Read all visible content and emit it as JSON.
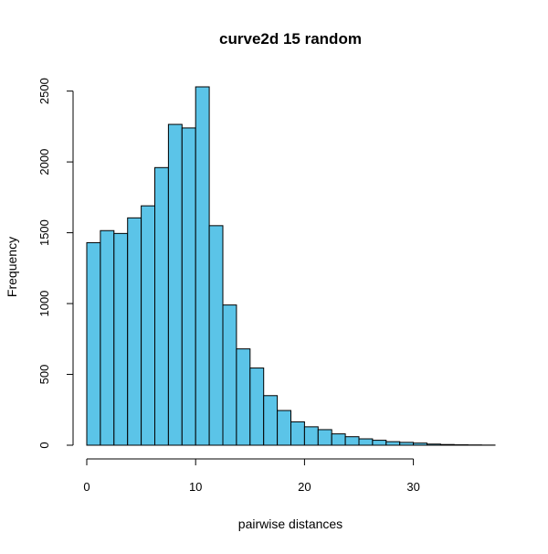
{
  "chart_data": {
    "type": "bar",
    "title": "curve2d 15 random",
    "xlabel": "pairwise distances",
    "ylabel": "Frequency",
    "bin_width": 1.25,
    "bin_start": 0,
    "x_ticks": [
      0,
      10,
      20,
      30
    ],
    "y_ticks": [
      0,
      500,
      1000,
      1500,
      2000,
      2500
    ],
    "xlim": [
      0,
      37.5
    ],
    "ylim": [
      0,
      2530
    ],
    "grid": false,
    "legend": "none",
    "bar_color": "#5bc4e8",
    "edge_color": "#000000",
    "bins": [
      [
        0.0,
        1.25
      ],
      [
        1.25,
        2.5
      ],
      [
        2.5,
        3.75
      ],
      [
        3.75,
        5.0
      ],
      [
        5.0,
        6.25
      ],
      [
        6.25,
        7.5
      ],
      [
        7.5,
        8.75
      ],
      [
        8.75,
        10.0
      ],
      [
        10.0,
        11.25
      ],
      [
        11.25,
        12.5
      ],
      [
        12.5,
        13.75
      ],
      [
        13.75,
        15.0
      ],
      [
        15.0,
        16.25
      ],
      [
        16.25,
        17.5
      ],
      [
        17.5,
        18.75
      ],
      [
        18.75,
        20.0
      ],
      [
        20.0,
        21.25
      ],
      [
        21.25,
        22.5
      ],
      [
        22.5,
        23.75
      ],
      [
        23.75,
        25.0
      ],
      [
        25.0,
        26.25
      ],
      [
        26.25,
        27.5
      ],
      [
        27.5,
        28.75
      ],
      [
        28.75,
        30.0
      ],
      [
        30.0,
        31.25
      ],
      [
        31.25,
        32.5
      ],
      [
        32.5,
        33.75
      ],
      [
        33.75,
        35.0
      ],
      [
        35.0,
        36.25
      ],
      [
        36.25,
        37.5
      ]
    ],
    "values": [
      1430,
      1515,
      1495,
      1605,
      1690,
      1960,
      2265,
      2240,
      2530,
      1550,
      990,
      680,
      545,
      350,
      245,
      165,
      130,
      110,
      80,
      60,
      45,
      35,
      25,
      20,
      15,
      8,
      5,
      3,
      2,
      1
    ]
  }
}
